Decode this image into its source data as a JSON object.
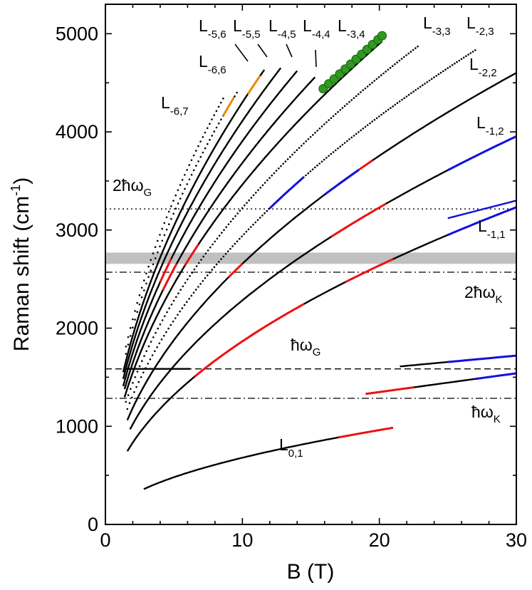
{
  "chart_data": {
    "type": "scatter",
    "title": "",
    "xlabel": "B (T)",
    "ylabel_main": "Raman shift (cm",
    "ylabel_sup": "-1",
    "ylabel_close": ")",
    "xlim": [
      0,
      30
    ],
    "ylim": [
      0,
      5300
    ],
    "x_ticks": [
      0,
      10,
      20,
      30
    ],
    "x_tick_labels": [
      "0",
      "10",
      "20",
      "30"
    ],
    "y_ticks": [
      0,
      1000,
      2000,
      3000,
      4000,
      5000
    ],
    "y_tick_labels": [
      "0",
      "1000",
      "2000",
      "3000",
      "4000",
      "5000"
    ],
    "colors": {
      "black": "#000000",
      "red": "#ee1111",
      "blue": "#1111dd",
      "orange": "#ee8800",
      "green": "#2e9a1e",
      "band": "#c0c0c0"
    },
    "reference_lines": [
      {
        "name": "2ħωG",
        "y": 3215,
        "style": "dotted"
      },
      {
        "name": "2ħωK",
        "y": 2570,
        "style": "dashdot"
      },
      {
        "name": "ħωG",
        "y": 1585,
        "style": "dashed"
      },
      {
        "name": "ħωK",
        "y": 1285,
        "style": "dashdot"
      }
    ],
    "band": {
      "y_low": 2655,
      "y_high": 2770
    },
    "series": [
      {
        "name": "L0,1",
        "k": 215,
        "x0": 2.8,
        "x1": 21,
        "marker": "line"
      },
      {
        "name": "L-1,1",
        "k": 590,
        "x0": 1.6,
        "x1": 30,
        "marker": "line"
      },
      {
        "name": "L-1,2",
        "k": 722,
        "x0": 1.8,
        "x1": 30,
        "marker": "line"
      },
      {
        "name": "L-2,2",
        "k": 840,
        "x0": 1.6,
        "x1": 30,
        "marker": "line"
      },
      {
        "name": "L-2,3",
        "k": 930,
        "x0": 1.6,
        "x1": 27,
        "marker": "dots"
      },
      {
        "name": "L-3,3",
        "k": 1020,
        "x0": 1.5,
        "x1": 22.8,
        "marker": "dots"
      },
      {
        "name": "L-3,4",
        "k": 1095,
        "x0": 1.4,
        "x1": 20.2,
        "marker": "line"
      },
      {
        "name": "L-4,4",
        "k": 1165,
        "x0": 1.4,
        "x1": 15.3,
        "marker": "line"
      },
      {
        "name": "L-4,5",
        "k": 1235,
        "x0": 1.3,
        "x1": 14,
        "marker": "line"
      },
      {
        "name": "L-5,5",
        "k": 1300,
        "x0": 1.3,
        "x1": 12.8,
        "marker": "line"
      },
      {
        "name": "L-5,6",
        "k": 1360,
        "x0": 1.3,
        "x1": 11.6,
        "marker": "line"
      },
      {
        "name": "L-6,6",
        "k": 1420,
        "x0": 1.5,
        "x1": 9.6,
        "marker": "dots"
      },
      {
        "name": "L-6,7",
        "k": 1480,
        "x0": 1.5,
        "x1": 8.6,
        "marker": "dots"
      }
    ],
    "highlights": [
      {
        "series": "L0,1",
        "color": "red",
        "x0": 17,
        "x1": 21
      },
      {
        "series": "L-1,1",
        "color": "red",
        "x0": 6.5,
        "x1": 14.5
      },
      {
        "series": "L-1,1",
        "color": "red",
        "x0": 17.5,
        "x1": 21
      },
      {
        "series": "L-1,1",
        "color": "blue",
        "x0": 25,
        "x1": 30
      },
      {
        "series": "L-1,2",
        "color": "red",
        "x0": 16.5,
        "x1": 20.5
      },
      {
        "series": "L-1,2",
        "color": "blue",
        "x0": 25,
        "x1": 30
      },
      {
        "series": "L-2,2",
        "color": "red",
        "x0": 9,
        "x1": 10
      },
      {
        "series": "L-2,2",
        "color": "red",
        "x0": 17,
        "x1": 19.5
      },
      {
        "series": "L-2,2",
        "color": "blue",
        "x0": 16,
        "x1": 18.5
      },
      {
        "series": "L-2,3",
        "color": "blue",
        "x0": 12,
        "x1": 14.5
      },
      {
        "series": "L-3,4",
        "color": "red",
        "x0": 5.8,
        "x1": 6.8
      },
      {
        "series": "L-4,4",
        "color": "red",
        "x0": 4.2,
        "x1": 5.2
      },
      {
        "series": "L-4,5",
        "color": "red",
        "x0": 4,
        "x1": 4.8
      },
      {
        "series": "L-6,6",
        "color": "orange",
        "x0": 8.6,
        "x1": 9.4
      },
      {
        "series": "L-5,6",
        "color": "orange",
        "x0": 10.4,
        "x1": 11.3
      }
    ],
    "flat_branches": [
      {
        "name": "plateau-1585",
        "x0": 1.5,
        "x1": 6.2,
        "y": 1585,
        "color": "black"
      },
      {
        "name": "upper-1600",
        "x0": 21.5,
        "x1": 30,
        "y0": 1610,
        "y1": 1720,
        "blue_from": 25
      },
      {
        "name": "upper-1300",
        "x0": 19,
        "x1": 30,
        "y0": 1330,
        "y1": 1540,
        "red_to": 22.5,
        "blue_from": 27
      },
      {
        "name": "upper-3150",
        "x0": 25,
        "x1": 30,
        "y0": 3120,
        "y1": 3300,
        "color": "blue"
      }
    ],
    "green_points": {
      "x": [
        15.9,
        16.3,
        16.7,
        17.1,
        17.5,
        17.9,
        18.3,
        18.7,
        19.1,
        19.5,
        19.9,
        20.2
      ],
      "y": [
        4440,
        4490,
        4540,
        4590,
        4640,
        4690,
        4740,
        4790,
        4840,
        4890,
        4940,
        4980
      ]
    },
    "labels": {
      "L01": {
        "base": "L",
        "sub": "0,1"
      },
      "Lm11": {
        "base": "L",
        "sub": "-1,1"
      },
      "Lm12": {
        "base": "L",
        "sub": "-1,2"
      },
      "Lm22": {
        "base": "L",
        "sub": "-2,2"
      },
      "Lm23": {
        "base": "L",
        "sub": "-2,3"
      },
      "Lm33": {
        "base": "L",
        "sub": "-3,3"
      },
      "Lm34": {
        "base": "L",
        "sub": "-3,4"
      },
      "Lm44": {
        "base": "L",
        "sub": "-4,4"
      },
      "Lm45": {
        "base": "L",
        "sub": "-4,5"
      },
      "Lm55": {
        "base": "L",
        "sub": "-5,5"
      },
      "Lm56": {
        "base": "L",
        "sub": "-5,6"
      },
      "Lm66": {
        "base": "L",
        "sub": "-6,6"
      },
      "Lm67": {
        "base": "L",
        "sub": "-6,7"
      },
      "twoHwG": {
        "base": "2ħω",
        "sub": "G"
      },
      "twoHwK": {
        "base": "2ħω",
        "sub": "K"
      },
      "hwG": {
        "base": "ħω",
        "sub": "G"
      },
      "hwK": {
        "base": "ħω",
        "sub": "K"
      }
    }
  }
}
